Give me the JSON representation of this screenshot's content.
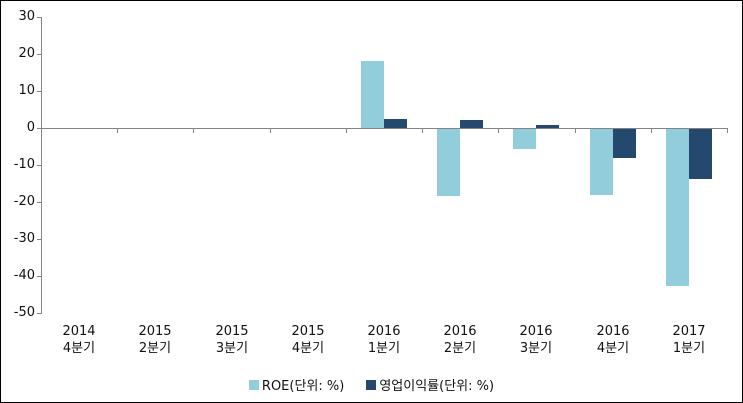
{
  "chart_data": {
    "type": "bar",
    "title": "",
    "categories": [
      {
        "year": "2014",
        "quarter": "4분기"
      },
      {
        "year": "2015",
        "quarter": "2분기"
      },
      {
        "year": "2015",
        "quarter": "3분기"
      },
      {
        "year": "2015",
        "quarter": "4분기"
      },
      {
        "year": "2016",
        "quarter": "1분기"
      },
      {
        "year": "2016",
        "quarter": "2분기"
      },
      {
        "year": "2016",
        "quarter": "3분기"
      },
      {
        "year": "2016",
        "quarter": "4분기"
      },
      {
        "year": "2017",
        "quarter": "1분기"
      }
    ],
    "series": [
      {
        "name": "ROE(단위: %)",
        "color": "#92CDDC",
        "values": [
          0,
          0,
          0,
          0,
          18,
          -18,
          -5.5,
          -17.8,
          -42.4
        ]
      },
      {
        "name": "영업이익률(단위: %)",
        "color": "#25496E",
        "values": [
          0,
          0,
          0,
          0,
          2.5,
          2.2,
          0.7,
          -7.8,
          -13.5
        ]
      }
    ],
    "y_axis": {
      "min": -50,
      "max": 30,
      "step": 10,
      "ticks": [
        30,
        20,
        10,
        0,
        -10,
        -20,
        -30,
        -40,
        -50
      ]
    },
    "x_axis": {
      "label": ""
    },
    "ylabel": "",
    "legend_position": "bottom",
    "grid": "zero-line-only"
  },
  "colors": {
    "series_roe": "#92CDDC",
    "series_op": "#25496E",
    "axis": "#848484",
    "text": "#111111",
    "background": "#FFFFFF",
    "border": "#000000"
  },
  "legend": {
    "roe_label": "ROE(단위: %)",
    "op_label": "영업이익률(단위: %)"
  }
}
